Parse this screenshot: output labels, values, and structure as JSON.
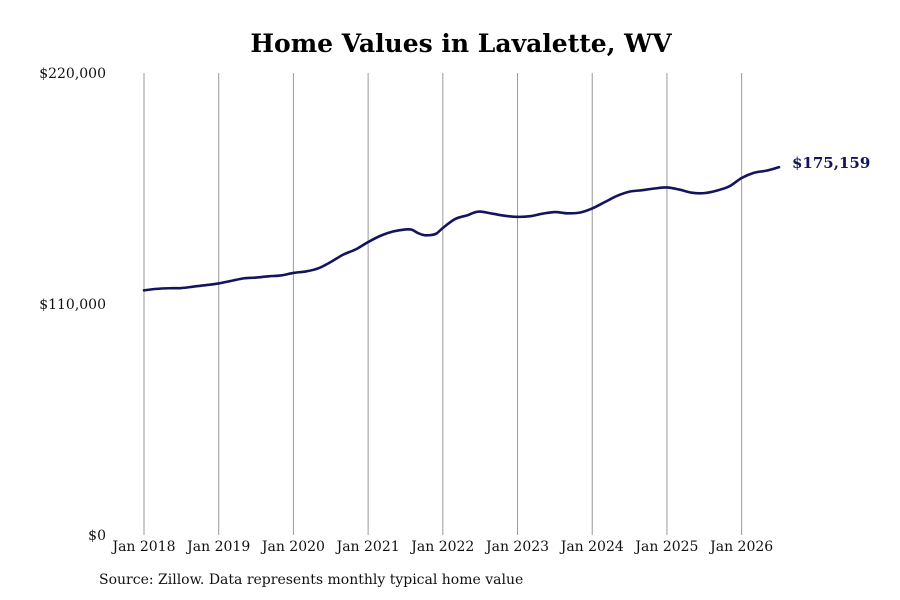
{
  "chart_data": {
    "type": "line",
    "title": "Home Values in Lavalette, WV",
    "xlabel": "",
    "ylabel": "",
    "ylim": [
      0,
      220000
    ],
    "y_ticks": [
      {
        "value": 0,
        "label": "$0"
      },
      {
        "value": 110000,
        "label": "$110,000"
      },
      {
        "value": 220000,
        "label": "$220,000"
      }
    ],
    "x_ticks": [
      {
        "value": "2018-01",
        "label": "Jan 2018"
      },
      {
        "value": "2019-01",
        "label": "Jan 2019"
      },
      {
        "value": "2020-01",
        "label": "Jan 2020"
      },
      {
        "value": "2021-01",
        "label": "Jan 2021"
      },
      {
        "value": "2022-01",
        "label": "Jan 2022"
      },
      {
        "value": "2023-01",
        "label": "Jan 2023"
      },
      {
        "value": "2024-01",
        "label": "Jan 2024"
      },
      {
        "value": "2025-01",
        "label": "Jan 2025"
      },
      {
        "value": "2026-01",
        "label": "Jan 2026"
      }
    ],
    "xlim": [
      "2018-01",
      "2026-07"
    ],
    "grid": "vertical",
    "series": [
      {
        "name": "",
        "color": "#14145e",
        "x": [
          "2018-01",
          "2018-03",
          "2018-05",
          "2018-07",
          "2018-09",
          "2018-11",
          "2019-01",
          "2019-03",
          "2019-05",
          "2019-07",
          "2019-09",
          "2019-11",
          "2020-01",
          "2020-03",
          "2020-05",
          "2020-07",
          "2020-09",
          "2020-11",
          "2021-01",
          "2021-03",
          "2021-05",
          "2021-07",
          "2021-08",
          "2021-09",
          "2021-10",
          "2021-11",
          "2021-12",
          "2022-01",
          "2022-03",
          "2022-05",
          "2022-06",
          "2022-07",
          "2022-09",
          "2022-11",
          "2023-01",
          "2023-03",
          "2023-05",
          "2023-07",
          "2023-09",
          "2023-11",
          "2024-01",
          "2024-03",
          "2024-05",
          "2024-07",
          "2024-09",
          "2024-11",
          "2025-01",
          "2025-03",
          "2025-05",
          "2025-07",
          "2025-09",
          "2025-11",
          "2026-01",
          "2026-03",
          "2026-05",
          "2026-07"
        ],
        "values": [
          116500,
          117200,
          117500,
          117600,
          118300,
          119000,
          119800,
          121000,
          122200,
          122600,
          123200,
          123600,
          124800,
          125500,
          127000,
          130000,
          133500,
          136000,
          139500,
          142500,
          144500,
          145500,
          145400,
          143800,
          142800,
          142800,
          143600,
          146200,
          150500,
          152300,
          153500,
          154000,
          153000,
          152000,
          151500,
          151800,
          153000,
          153800,
          153200,
          153500,
          155500,
          158500,
          161500,
          163500,
          164200,
          165000,
          165500,
          164500,
          163000,
          162800,
          164000,
          166000,
          170000,
          172500,
          173500,
          175159
        ]
      }
    ],
    "end_label": "$175,159"
  },
  "source_text": "Source: Zillow. Data represents monthly typical home value"
}
